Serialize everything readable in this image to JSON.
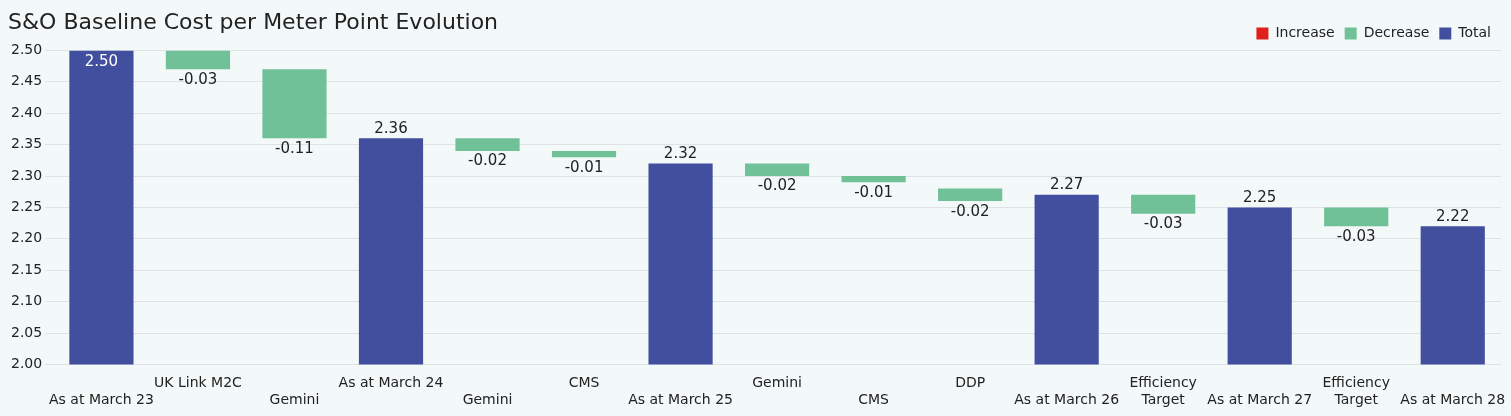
{
  "chart_data": {
    "type": "bar",
    "title": "S&O Baseline Cost per Meter Point Evolution",
    "categories": [
      "As at March 23",
      "UK Link M2C",
      "Gemini",
      "As at March 24",
      "Gemini",
      "CMS",
      "As at March 25",
      "Gemini",
      "CMS",
      "DDP",
      "As at March 26",
      "Efficiency Target",
      "As at March 27",
      "Efficiency Target",
      "As at March 28"
    ],
    "series": [
      {
        "name": "Increase",
        "color": "#e0201b",
        "values": [
          null,
          null,
          null,
          null,
          null,
          null,
          null,
          null,
          null,
          null,
          null,
          null,
          null,
          null,
          null
        ]
      },
      {
        "name": "Decrease",
        "color": "#70c197",
        "values": [
          null,
          -0.03,
          -0.11,
          null,
          -0.02,
          -0.01,
          null,
          -0.02,
          -0.01,
          -0.02,
          null,
          -0.03,
          null,
          -0.03,
          null
        ],
        "base": [
          null,
          2.5,
          2.47,
          null,
          2.36,
          2.34,
          null,
          2.32,
          2.3,
          2.28,
          null,
          2.27,
          null,
          2.25,
          null
        ],
        "value_labels": [
          null,
          "-0.03",
          "-0.11",
          null,
          "-0.02",
          "-0.01",
          null,
          "-0.02",
          "-0.01",
          "-0.02",
          null,
          "-0.03",
          null,
          "-0.03",
          null
        ]
      },
      {
        "name": "Total",
        "color": "#424f9f",
        "values": [
          2.5,
          null,
          null,
          2.36,
          null,
          null,
          2.32,
          null,
          null,
          null,
          2.27,
          null,
          2.25,
          null,
          2.22
        ],
        "value_labels": [
          "2.50",
          null,
          null,
          "2.36",
          null,
          null,
          "2.32",
          null,
          null,
          null,
          "2.27",
          null,
          "2.25",
          null,
          "2.22"
        ]
      }
    ],
    "ylim": [
      2.0,
      2.5
    ],
    "yticks": [
      {
        "value": 2.0,
        "label": "2.00"
      },
      {
        "value": 2.05,
        "label": "2.05"
      },
      {
        "value": 2.1,
        "label": "2.10"
      },
      {
        "value": 2.15,
        "label": "2.15"
      },
      {
        "value": 2.2,
        "label": "2.20"
      },
      {
        "value": 2.25,
        "label": "2.25"
      },
      {
        "value": 2.3,
        "label": "2.30"
      },
      {
        "value": 2.35,
        "label": "2.35"
      },
      {
        "value": 2.4,
        "label": "2.40"
      },
      {
        "value": 2.45,
        "label": "2.45"
      },
      {
        "value": 2.5,
        "label": "2.50"
      }
    ],
    "grid": "y",
    "legend": "top right"
  }
}
